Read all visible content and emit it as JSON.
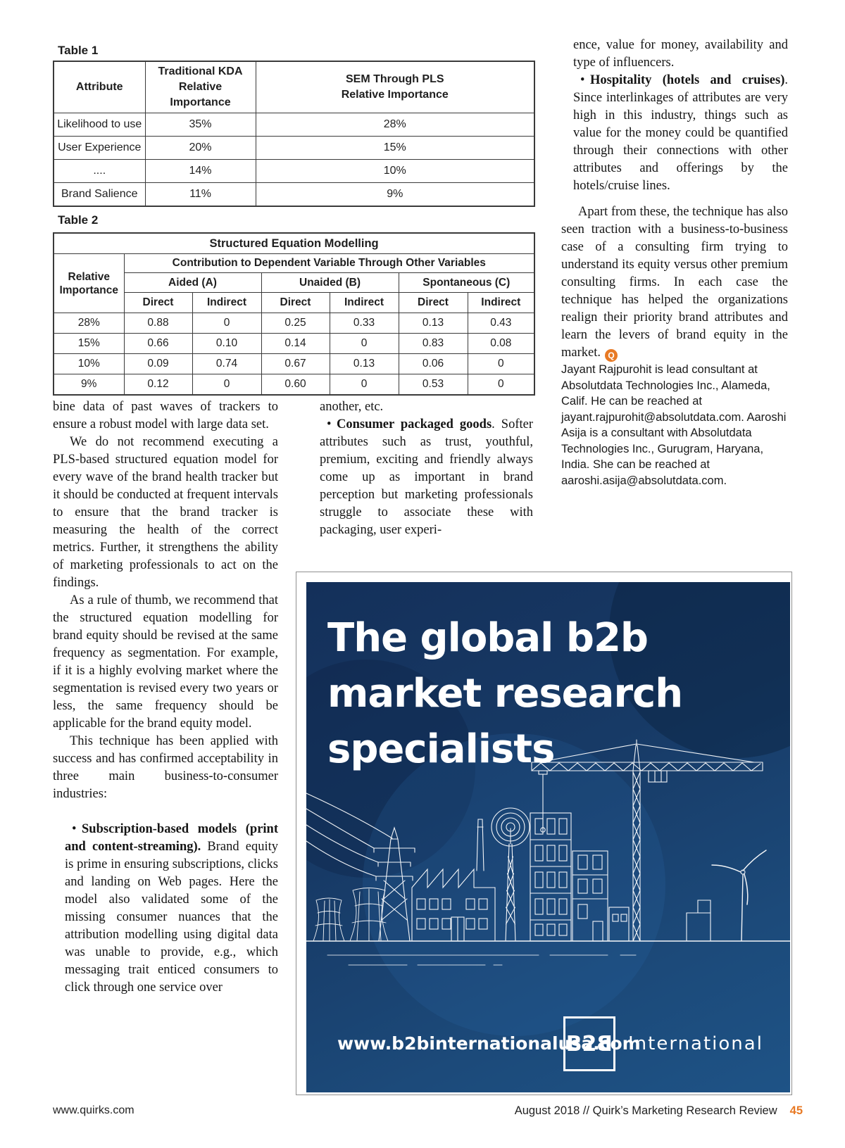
{
  "accent_orange": "#E87A25",
  "ad_navy": "#173A63",
  "tables": {
    "table1": {
      "label": "Table 1",
      "col_attribute": "Attribute",
      "col_kda_line1": "Traditional KDA",
      "col_kda_line2": "Relative Importance",
      "col_sem_line1": "SEM Through PLS",
      "col_sem_line2": "Relative Importance",
      "rows": [
        [
          "Likelihood to use",
          "35%",
          "28%"
        ],
        [
          "User Experience",
          "20%",
          "15%"
        ],
        [
          "....",
          "14%",
          "10%"
        ],
        [
          "Brand Salience",
          "11%",
          "9%"
        ]
      ]
    },
    "table2": {
      "label": "Table 2",
      "title": "Structured Equation Modelling",
      "col_relative_importance": "Relative Importance",
      "col_contribution": "Contribution to Dependent Variable Through Other Variables",
      "groups": [
        "Aided (A)",
        "Unaided (B)",
        "Spontaneous (C)"
      ],
      "subheaders": [
        "Direct",
        "Indirect",
        "Direct",
        "Indirect",
        "Direct",
        "Indirect"
      ],
      "rows": [
        [
          "28%",
          "0.88",
          "0",
          "0.25",
          "0.33",
          "0.13",
          "0.43"
        ],
        [
          "15%",
          "0.66",
          "0.10",
          "0.14",
          "0",
          "0.83",
          "0.08"
        ],
        [
          "10%",
          "0.09",
          "0.74",
          "0.67",
          "0.13",
          "0.06",
          "0"
        ],
        [
          "9%",
          "0.12",
          "0",
          "0.60",
          "0",
          "0.53",
          "0"
        ]
      ]
    }
  },
  "article": {
    "bullet_char": "•",
    "col1": {
      "p1": "bine data of past waves of trackers to ensure a robust model with large data set.",
      "p2": "We do not recommend executing a PLS-based structured equation model for every wave of the brand health tracker but it should be conducted at frequent intervals to ensure that the brand tracker is measuring the health of the correct metrics. Further, it strengthens the ability of marketing professionals to act on the findings.",
      "p3": "As a rule of thumb, we recommend that the structured equation modelling for brand equity should be revised at the same frequency as segmentation. For example, if it is a highly evolving market where the segmentation is revised every two years or less, the same frequency should be applicable for the brand equity model.",
      "p4": "This technique has been applied with success and has confirmed acceptability in three main business-to-consumer industries:",
      "bullet1_bold": "Subscription-based models (print and content-streaming).",
      "bullet1_rest": " Brand equity is prime in ensuring subscriptions, clicks and landing on Web pages. Here the model also validated some of the missing consumer nuances that the attribution modelling using digital data was unable to provide, e.g., which messaging trait enticed consumers to click through one service over"
    },
    "col2": {
      "cont": "another, etc.",
      "bullet2_bold": "Consumer packaged goods",
      "bullet2_rest": ". Softer attributes such as trust, youthful, premium, exciting and friendly always come up as important in brand perception but marketing professionals struggle to associate these with packaging, user experi-"
    },
    "col3": {
      "cont": "ence, value for money, availability and type of influencers.",
      "bullet3_bold": "Hospitality (hotels and cruises)",
      "bullet3_rest": ". Since interlinkages of attributes are very high in this industry, things such as value for the money could be quantified through their connections with other attributes and offerings by the hotels/cruise lines.",
      "p_final": "Apart from these, the technique has also seen traction with a business-to-business case of a consulting firm trying to understand its equity versus other premium consulting firms. In each case the technique has helped the organizations realign their priority brand attributes and learn the levers of brand equity in the market.",
      "end_mark": "Q",
      "bio": "Jayant Rajpurohit is lead consultant at Absolutdata Technologies Inc., Alameda, Calif. He can be reached at jayant.rajpurohit@absolutdata.com. Aaroshi Asija is a consultant with Absolutdata Technologies Inc., Gurugram, Haryana, India. She can be reached at aaroshi.asija@absolutdata.com."
    }
  },
  "ad": {
    "headline_line1": "The global b2b",
    "headline_line2": "market research",
    "headline_line3": "specialists",
    "website": "www.b2binternationalusa.com",
    "logo_b2": "B2",
    "logo_b_mirrored": "B",
    "logo_name": "International"
  },
  "footer": {
    "left": "www.quirks.com",
    "right": "August 2018 // Quirk’s Marketing Research Review",
    "page_number": "45"
  }
}
